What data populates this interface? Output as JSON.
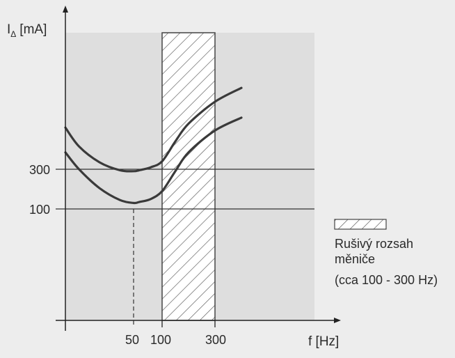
{
  "chart_data": {
    "type": "line",
    "ylabel_main": "I",
    "ylabel_sub": "Δ",
    "ylabel_unit": "[mA]",
    "xlabel": "f [Hz]",
    "x_ticks": [
      "50",
      "100",
      "300"
    ],
    "y_ticks": [
      "300",
      "100"
    ],
    "reference_lines": [
      300,
      100
    ],
    "dashed_x": "50",
    "band": {
      "from": "100",
      "to": "300"
    },
    "series": [
      {
        "points": [
          [
            "0",
            510
          ],
          [
            "10",
            415
          ],
          [
            "25",
            335
          ],
          [
            "40",
            295
          ],
          [
            "50",
            290
          ],
          [
            "60",
            295
          ],
          [
            "80",
            310
          ],
          [
            "100",
            340
          ],
          [
            "150",
            440
          ],
          [
            "200",
            530
          ],
          [
            "300",
            640
          ],
          [
            "400",
            710
          ]
        ]
      },
      {
        "points": [
          [
            "0",
            385
          ],
          [
            "10",
            300
          ],
          [
            "25",
            205
          ],
          [
            "40",
            145
          ],
          [
            "50",
            130
          ],
          [
            "60",
            135
          ],
          [
            "80",
            150
          ],
          [
            "100",
            190
          ],
          [
            "150",
            290
          ],
          [
            "200",
            385
          ],
          [
            "300",
            495
          ],
          [
            "400",
            560
          ]
        ]
      }
    ],
    "legend": {
      "line1": "Rušivý rozsah",
      "line2": "měniče",
      "line3": "(cca 100 - 300 Hz)"
    },
    "colors": {
      "plot_bg": "#dedede",
      "page_bg": "#ededed",
      "ink": "#3a3a3a"
    }
  }
}
